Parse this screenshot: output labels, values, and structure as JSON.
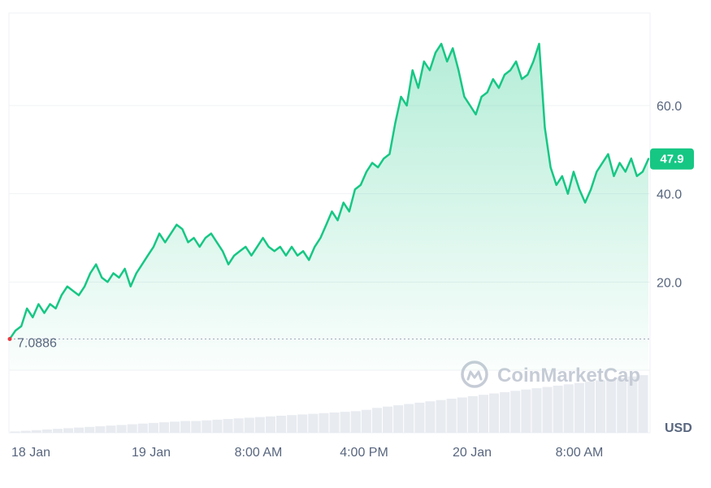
{
  "chart_data": {
    "type": "area",
    "x_ticks": [
      "18 Jan",
      "19 Jan",
      "8:00 AM",
      "4:00 PM",
      "20 Jan",
      "8:00 AM"
    ],
    "y_ticks": [
      "20.0",
      "40.0",
      "60.0"
    ],
    "ylim": [
      0,
      80
    ],
    "grid": true,
    "currency_label": "USD",
    "watermark": "CoinMarketCap",
    "current_price": "47.9",
    "open_price": "7.0886",
    "colors": {
      "line": "#16c784",
      "area_top": "#16c784",
      "price_tag_bg": "#16c784",
      "volume": "#e8ebf0",
      "grid": "#eff2f5",
      "axis_text": "#58667e",
      "dotted_ref": "#a1a7bb"
    },
    "series": [
      {
        "values": [
          7.1,
          9,
          10,
          14,
          12,
          15,
          13,
          15,
          14,
          17,
          19,
          18,
          17,
          19,
          22,
          24,
          21,
          20,
          22,
          21,
          23,
          19,
          22,
          24,
          26,
          28,
          31,
          29,
          31,
          33,
          32,
          29,
          30,
          28,
          30,
          31,
          29,
          27,
          24,
          26,
          27,
          28,
          26,
          28,
          30,
          28,
          27,
          28,
          26,
          28,
          26,
          27,
          25,
          28,
          30,
          33,
          36,
          34,
          38,
          36,
          41,
          42,
          45,
          47,
          46,
          48,
          49,
          56,
          62,
          60,
          68,
          64,
          70,
          68,
          72,
          74,
          70,
          73,
          68,
          62,
          60,
          58,
          62,
          63,
          66,
          64,
          67,
          68,
          70,
          66,
          67,
          70,
          74,
          55,
          46,
          42,
          44,
          40,
          45,
          41,
          38,
          41,
          45,
          47,
          49,
          44,
          47,
          45,
          48,
          44,
          45,
          47.9
        ]
      }
    ],
    "volume": [
      2,
      3,
      4,
      5,
      6,
      7,
      8,
      9,
      10,
      11,
      12,
      13,
      14,
      15,
      16,
      17,
      18,
      18,
      19,
      20,
      21,
      22,
      23,
      24,
      25,
      26,
      27,
      28,
      29,
      30,
      31,
      32,
      33,
      35,
      38,
      40,
      42,
      44,
      46,
      48,
      50,
      52,
      54,
      56,
      58,
      60,
      62,
      64,
      66,
      68,
      70,
      72,
      74,
      76,
      78,
      80,
      82,
      84,
      86,
      88
    ]
  }
}
